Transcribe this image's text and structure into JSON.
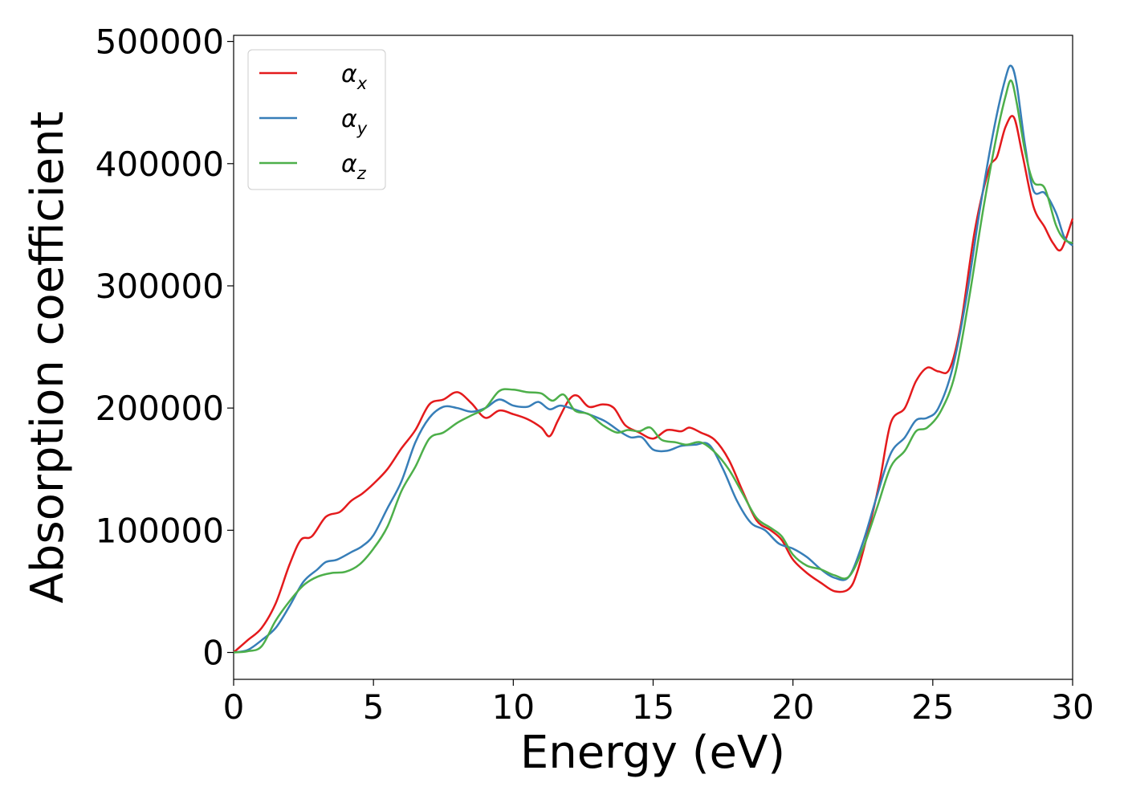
{
  "chart_data": {
    "type": "line",
    "xlabel": "Energy (eV)",
    "ylabel": "Absorption coefficient",
    "xlim": [
      0,
      30
    ],
    "ylim": [
      -22000,
      505000
    ],
    "x_ticks": [
      0,
      5,
      10,
      15,
      20,
      25,
      30
    ],
    "y_ticks": [
      0,
      100000,
      200000,
      300000,
      400000,
      500000
    ],
    "x_tick_labels": [
      "0",
      "5",
      "10",
      "15",
      "20",
      "25",
      "30"
    ],
    "y_tick_labels": [
      "0",
      "100000",
      "200000",
      "300000",
      "400000",
      "500000"
    ],
    "grid": false,
    "legend_position": "top-left",
    "series": [
      {
        "name": "α",
        "subscript": "x",
        "color": "#e41a1c",
        "points": [
          [
            0,
            0
          ],
          [
            0.5,
            10000
          ],
          [
            1.0,
            20000
          ],
          [
            1.5,
            40000
          ],
          [
            2.0,
            72000
          ],
          [
            2.4,
            92000
          ],
          [
            2.8,
            95000
          ],
          [
            3.3,
            111000
          ],
          [
            3.8,
            115000
          ],
          [
            4.2,
            124000
          ],
          [
            4.6,
            130000
          ],
          [
            5.0,
            138000
          ],
          [
            5.5,
            150000
          ],
          [
            6.0,
            167000
          ],
          [
            6.5,
            182000
          ],
          [
            7.0,
            203000
          ],
          [
            7.5,
            207000
          ],
          [
            8.0,
            213000
          ],
          [
            8.5,
            204000
          ],
          [
            9.0,
            192000
          ],
          [
            9.5,
            198000
          ],
          [
            10.0,
            195000
          ],
          [
            10.5,
            191000
          ],
          [
            11.0,
            184000
          ],
          [
            11.3,
            177000
          ],
          [
            11.6,
            190000
          ],
          [
            12.0,
            207000
          ],
          [
            12.3,
            210000
          ],
          [
            12.7,
            201000
          ],
          [
            13.2,
            203000
          ],
          [
            13.6,
            200000
          ],
          [
            14.0,
            186000
          ],
          [
            14.5,
            180000
          ],
          [
            15.0,
            175000
          ],
          [
            15.5,
            182000
          ],
          [
            16.0,
            181000
          ],
          [
            16.3,
            184000
          ],
          [
            16.7,
            180000
          ],
          [
            17.2,
            174000
          ],
          [
            17.7,
            158000
          ],
          [
            18.2,
            132000
          ],
          [
            18.7,
            108000
          ],
          [
            19.2,
            100000
          ],
          [
            19.6,
            92000
          ],
          [
            20.0,
            76000
          ],
          [
            20.5,
            65000
          ],
          [
            21.0,
            57000
          ],
          [
            21.5,
            50000
          ],
          [
            22.0,
            52000
          ],
          [
            22.3,
            66000
          ],
          [
            22.7,
            100000
          ],
          [
            23.1,
            140000
          ],
          [
            23.5,
            188000
          ],
          [
            24.0,
            200000
          ],
          [
            24.4,
            222000
          ],
          [
            24.8,
            233000
          ],
          [
            25.2,
            230000
          ],
          [
            25.6,
            232000
          ],
          [
            26.0,
            268000
          ],
          [
            26.5,
            345000
          ],
          [
            27.0,
            395000
          ],
          [
            27.3,
            406000
          ],
          [
            27.6,
            430000
          ],
          [
            27.9,
            438000
          ],
          [
            28.2,
            408000
          ],
          [
            28.6,
            365000
          ],
          [
            29.0,
            348000
          ],
          [
            29.3,
            335000
          ],
          [
            29.6,
            330000
          ],
          [
            30.0,
            355000
          ]
        ]
      },
      {
        "name": "α",
        "subscript": "y",
        "color": "#377eb8",
        "points": [
          [
            0,
            0
          ],
          [
            0.5,
            2000
          ],
          [
            1.0,
            10000
          ],
          [
            1.5,
            20000
          ],
          [
            2.0,
            38000
          ],
          [
            2.5,
            58000
          ],
          [
            3.0,
            68000
          ],
          [
            3.3,
            74000
          ],
          [
            3.7,
            76000
          ],
          [
            4.2,
            82000
          ],
          [
            4.6,
            87000
          ],
          [
            5.0,
            96000
          ],
          [
            5.5,
            118000
          ],
          [
            6.0,
            140000
          ],
          [
            6.5,
            172000
          ],
          [
            7.0,
            192000
          ],
          [
            7.5,
            201000
          ],
          [
            8.0,
            200000
          ],
          [
            8.5,
            197000
          ],
          [
            9.0,
            200000
          ],
          [
            9.5,
            207000
          ],
          [
            10.0,
            202000
          ],
          [
            10.5,
            201000
          ],
          [
            10.9,
            205000
          ],
          [
            11.3,
            199000
          ],
          [
            11.7,
            202000
          ],
          [
            12.3,
            198000
          ],
          [
            12.8,
            194000
          ],
          [
            13.3,
            189000
          ],
          [
            13.8,
            181000
          ],
          [
            14.2,
            176000
          ],
          [
            14.6,
            176000
          ],
          [
            15.0,
            166000
          ],
          [
            15.5,
            165000
          ],
          [
            16.0,
            169000
          ],
          [
            16.5,
            170000
          ],
          [
            17.0,
            170000
          ],
          [
            17.5,
            150000
          ],
          [
            18.0,
            124000
          ],
          [
            18.5,
            106000
          ],
          [
            19.0,
            100000
          ],
          [
            19.5,
            89000
          ],
          [
            20.0,
            85000
          ],
          [
            20.5,
            78000
          ],
          [
            21.0,
            68000
          ],
          [
            21.5,
            61000
          ],
          [
            22.0,
            62000
          ],
          [
            22.5,
            90000
          ],
          [
            23.0,
            128000
          ],
          [
            23.5,
            163000
          ],
          [
            24.0,
            176000
          ],
          [
            24.4,
            190000
          ],
          [
            24.8,
            192000
          ],
          [
            25.2,
            200000
          ],
          [
            25.7,
            232000
          ],
          [
            26.2,
            290000
          ],
          [
            26.7,
            365000
          ],
          [
            27.2,
            430000
          ],
          [
            27.6,
            470000
          ],
          [
            27.8,
            480000
          ],
          [
            28.0,
            465000
          ],
          [
            28.3,
            415000
          ],
          [
            28.6,
            378000
          ],
          [
            29.0,
            376000
          ],
          [
            29.4,
            360000
          ],
          [
            29.7,
            340000
          ],
          [
            30.0,
            333000
          ]
        ]
      },
      {
        "name": "α",
        "subscript": "z",
        "color": "#4daf4a",
        "points": [
          [
            0,
            0
          ],
          [
            0.5,
            1000
          ],
          [
            1.0,
            5000
          ],
          [
            1.5,
            26000
          ],
          [
            2.0,
            42000
          ],
          [
            2.5,
            55000
          ],
          [
            3.0,
            62000
          ],
          [
            3.5,
            65000
          ],
          [
            4.0,
            66000
          ],
          [
            4.5,
            72000
          ],
          [
            5.0,
            85000
          ],
          [
            5.5,
            103000
          ],
          [
            6.0,
            132000
          ],
          [
            6.5,
            152000
          ],
          [
            7.0,
            175000
          ],
          [
            7.5,
            180000
          ],
          [
            8.0,
            188000
          ],
          [
            8.5,
            194000
          ],
          [
            9.0,
            200000
          ],
          [
            9.5,
            214000
          ],
          [
            10.0,
            215000
          ],
          [
            10.5,
            213000
          ],
          [
            11.0,
            212000
          ],
          [
            11.4,
            206000
          ],
          [
            11.8,
            211000
          ],
          [
            12.2,
            198000
          ],
          [
            12.7,
            195000
          ],
          [
            13.2,
            186000
          ],
          [
            13.7,
            180000
          ],
          [
            14.1,
            182000
          ],
          [
            14.5,
            181000
          ],
          [
            14.9,
            184000
          ],
          [
            15.3,
            174000
          ],
          [
            15.8,
            172000
          ],
          [
            16.2,
            170000
          ],
          [
            16.7,
            172000
          ],
          [
            17.2,
            164000
          ],
          [
            17.7,
            150000
          ],
          [
            18.2,
            130000
          ],
          [
            18.7,
            110000
          ],
          [
            19.2,
            102000
          ],
          [
            19.6,
            95000
          ],
          [
            20.0,
            80000
          ],
          [
            20.5,
            71000
          ],
          [
            21.0,
            68000
          ],
          [
            21.5,
            63000
          ],
          [
            22.0,
            62000
          ],
          [
            22.5,
            85000
          ],
          [
            23.0,
            118000
          ],
          [
            23.5,
            152000
          ],
          [
            24.0,
            165000
          ],
          [
            24.4,
            181000
          ],
          [
            24.8,
            184000
          ],
          [
            25.3,
            198000
          ],
          [
            25.8,
            228000
          ],
          [
            26.3,
            290000
          ],
          [
            26.8,
            362000
          ],
          [
            27.3,
            425000
          ],
          [
            27.6,
            455000
          ],
          [
            27.8,
            468000
          ],
          [
            28.0,
            450000
          ],
          [
            28.3,
            410000
          ],
          [
            28.6,
            385000
          ],
          [
            29.0,
            380000
          ],
          [
            29.4,
            350000
          ],
          [
            29.7,
            338000
          ],
          [
            30.0,
            335000
          ]
        ]
      }
    ]
  }
}
